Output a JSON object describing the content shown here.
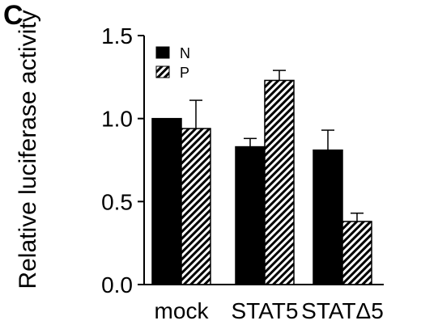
{
  "panel_label": "C",
  "chart_data": {
    "type": "bar",
    "title": "",
    "xlabel": "",
    "ylabel": "Relative luciferase activity",
    "ylim": [
      0,
      1.5
    ],
    "yticks": [
      "0.0",
      "0.5",
      "1.0",
      "1.5"
    ],
    "categories": [
      "mock",
      "STAT5",
      "STATΔ5"
    ],
    "series": [
      {
        "name": "N",
        "values": [
          1.0,
          0.83,
          0.81
        ],
        "errors": [
          0.0,
          0.05,
          0.12
        ],
        "fill": "solid",
        "color": "#000000"
      },
      {
        "name": "P",
        "values": [
          0.94,
          1.23,
          0.38
        ],
        "errors": [
          0.17,
          0.06,
          0.05
        ],
        "fill": "hatched",
        "color": "#000000"
      }
    ],
    "legend_position": "top-left",
    "grid": false
  }
}
